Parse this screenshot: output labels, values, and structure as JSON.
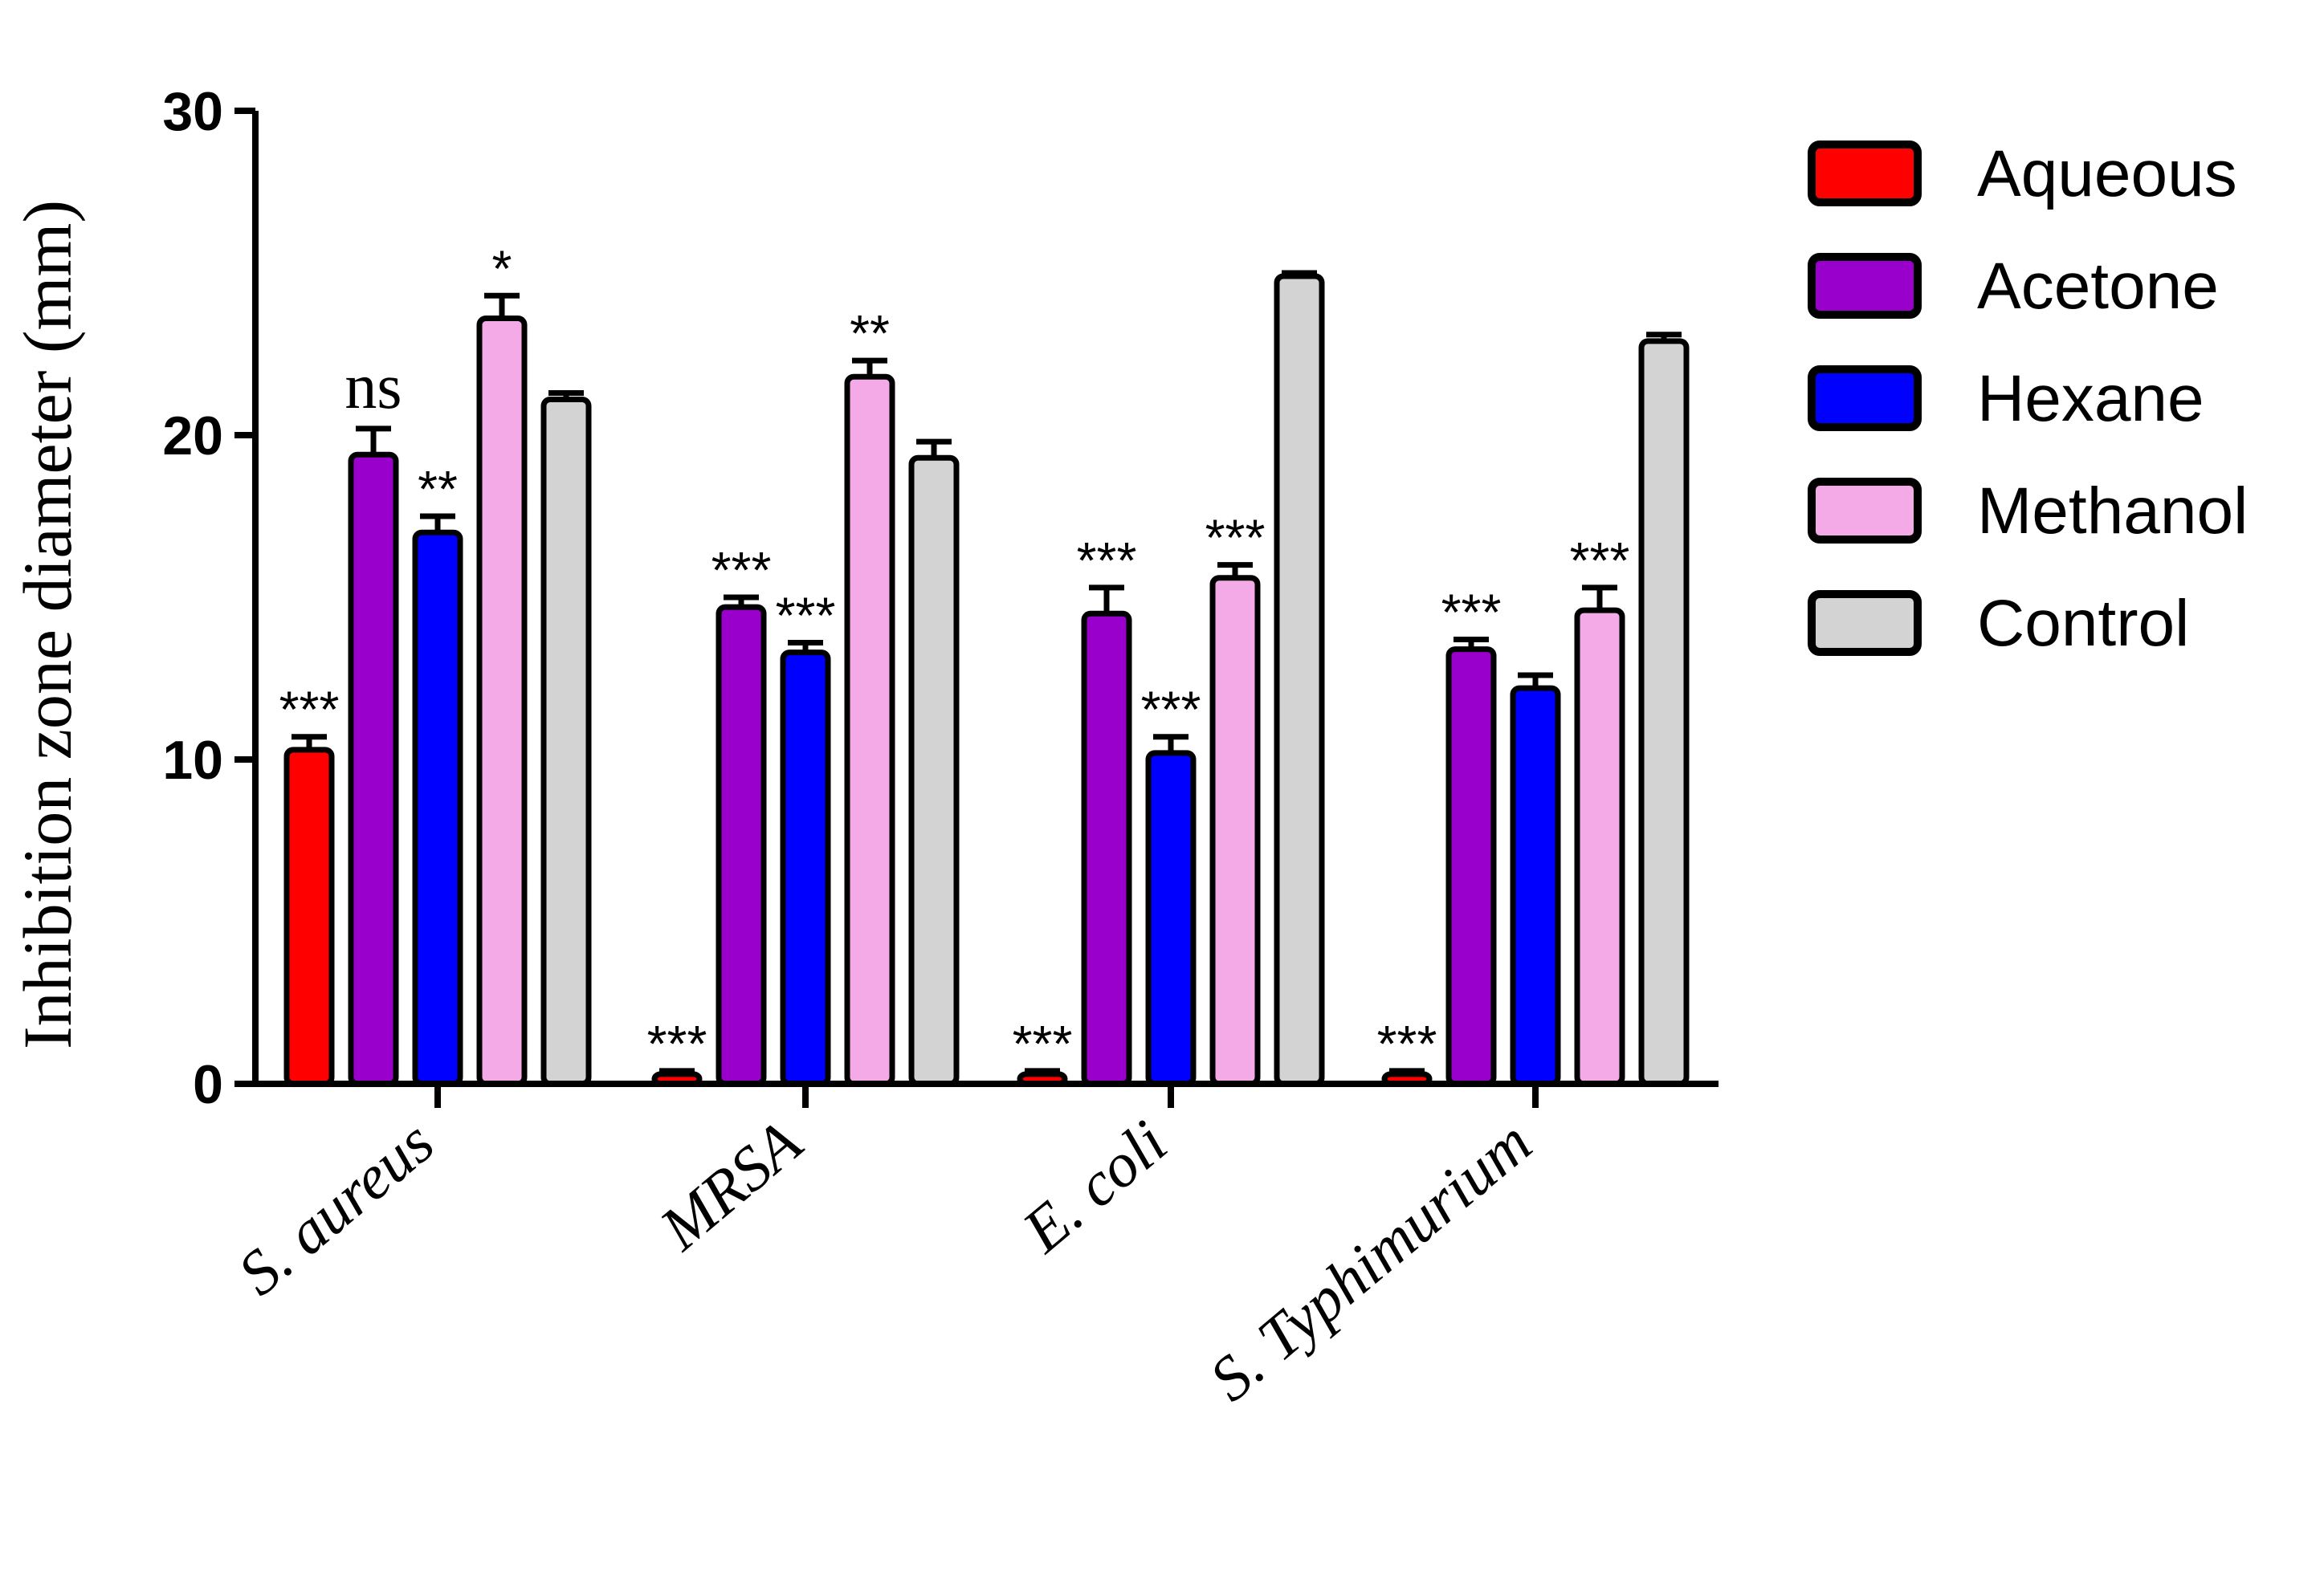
{
  "chart_data": {
    "type": "bar",
    "title": "",
    "xlabel": "",
    "ylabel": "Inhibition zone diameter (mm)",
    "ylim": [
      0,
      30
    ],
    "yticks": [
      0,
      10,
      20,
      30
    ],
    "grid": false,
    "legend_position": "top-right",
    "categories": [
      "S. aureus",
      "MRSA",
      "E. coli",
      "S. Typhimurium"
    ],
    "series": [
      {
        "name": "Aqueous",
        "color": "#ff0000",
        "values": [
          10.3,
          0.3,
          0.3,
          0.3
        ],
        "errors": [
          0.4,
          0.1,
          0.1,
          0.1
        ],
        "significance": [
          "***",
          "***",
          "***",
          "***"
        ]
      },
      {
        "name": "Acetone",
        "color": "#9900cc",
        "values": [
          19.4,
          14.7,
          14.5,
          13.4
        ],
        "errors": [
          0.8,
          0.3,
          0.8,
          0.3
        ],
        "significance": [
          "ns",
          "***",
          "***",
          "***"
        ]
      },
      {
        "name": "Hexane",
        "color": "#0000ff",
        "values": [
          17.0,
          13.3,
          10.2,
          12.2
        ],
        "errors": [
          0.5,
          0.3,
          0.5,
          0.4
        ],
        "significance": [
          "**",
          "***",
          "***",
          ""
        ]
      },
      {
        "name": "Methanol",
        "color": "#f4aae6",
        "values": [
          23.6,
          21.8,
          15.6,
          14.6
        ],
        "errors": [
          0.7,
          0.5,
          0.4,
          0.7
        ],
        "significance": [
          "*",
          "**",
          "***",
          "***"
        ]
      },
      {
        "name": "Control",
        "color": "#d3d3d3",
        "values": [
          21.1,
          19.3,
          24.9,
          22.9
        ],
        "errors": [
          0.2,
          0.5,
          0.1,
          0.2
        ],
        "significance": [
          "",
          "",
          "",
          ""
        ]
      }
    ]
  }
}
